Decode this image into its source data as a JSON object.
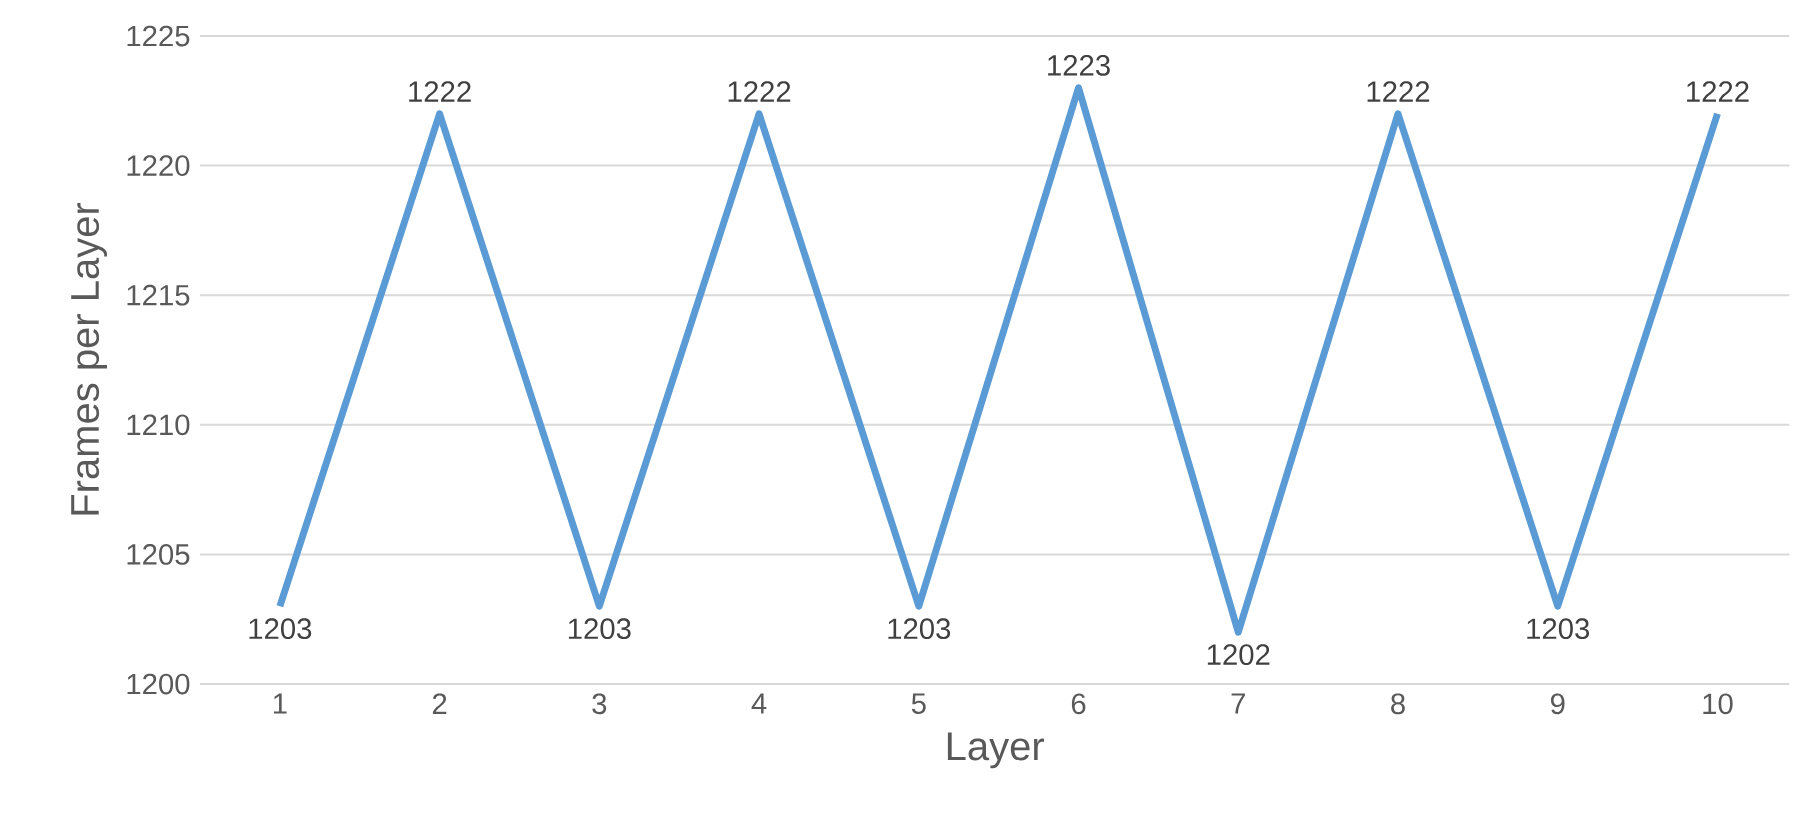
{
  "chart_data": {
    "type": "line",
    "xlabel": "Layer",
    "ylabel": "Frames per Layer",
    "categories": [
      "1",
      "2",
      "3",
      "4",
      "5",
      "6",
      "7",
      "8",
      "9",
      "10"
    ],
    "series": [
      {
        "color": "#5b9bd5",
        "values": [
          1203,
          1222,
          1203,
          1222,
          1203,
          1223,
          1202,
          1222,
          1203,
          1222
        ]
      }
    ],
    "ylim": [
      1200,
      1225
    ],
    "yticks": [
      1200,
      1205,
      1210,
      1215,
      1220,
      1225
    ],
    "grid": "y",
    "data_labels": true,
    "marker": "none",
    "line_style": "solid"
  }
}
